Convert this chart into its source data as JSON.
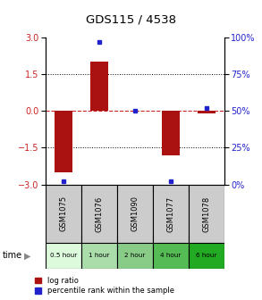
{
  "title": "GDS115 / 4538",
  "samples": [
    "GSM1075",
    "GSM1076",
    "GSM1090",
    "GSM1077",
    "GSM1078"
  ],
  "time_labels": [
    "0.5 hour",
    "1 hour",
    "2 hour",
    "4 hour",
    "6 hour"
  ],
  "log_ratios": [
    -2.5,
    2.0,
    0.0,
    -1.8,
    -0.1
  ],
  "percentile_ranks": [
    2,
    97,
    50,
    2,
    52
  ],
  "ylim_left": [
    -3,
    3
  ],
  "ylim_right": [
    0,
    100
  ],
  "yticks_left": [
    -3,
    -1.5,
    0,
    1.5,
    3
  ],
  "yticks_right": [
    0,
    25,
    50,
    75,
    100
  ],
  "bar_color": "#aa1111",
  "dot_color": "#2222cc",
  "bar_width": 0.5,
  "hline_color": "#cc2222",
  "dot_color2": "#333333",
  "sample_bg": "#cccccc",
  "time_bg_colors": [
    "#ddfadd",
    "#aaddaa",
    "#88cc88",
    "#55bb55",
    "#22aa22"
  ],
  "legend_red_label": "log ratio",
  "legend_blue_label": "percentile rank within the sample"
}
